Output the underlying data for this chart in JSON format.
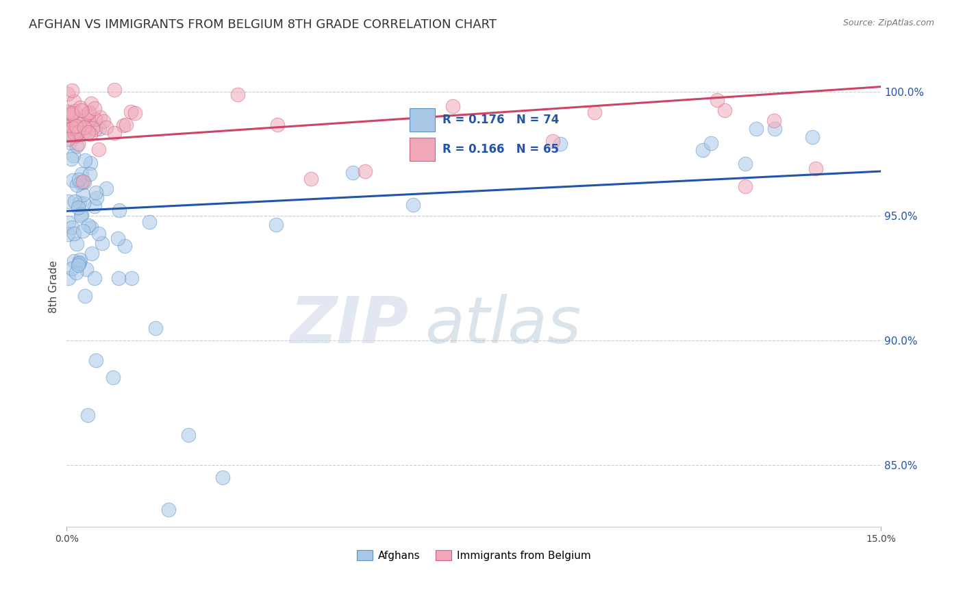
{
  "title": "AFGHAN VS IMMIGRANTS FROM BELGIUM 8TH GRADE CORRELATION CHART",
  "source": "Source: ZipAtlas.com",
  "ylabel": "8th Grade",
  "xlim": [
    0.0,
    15.0
  ],
  "ylim": [
    82.5,
    101.8
  ],
  "yticks": [
    85.0,
    90.0,
    95.0,
    100.0
  ],
  "blue_R": 0.176,
  "blue_N": 74,
  "pink_R": 0.166,
  "pink_N": 65,
  "blue_fill": "#a8c8e8",
  "blue_edge": "#5a8fc0",
  "pink_fill": "#f0a8b8",
  "pink_edge": "#d06080",
  "blue_line_color": "#2255aa",
  "pink_line_color": "#cc4466",
  "legend_label_blue": "Afghans",
  "legend_label_pink": "Immigrants from Belgium",
  "watermark_zip": "ZIP",
  "watermark_atlas": "atlas",
  "legend_bg": "#dde8f8"
}
